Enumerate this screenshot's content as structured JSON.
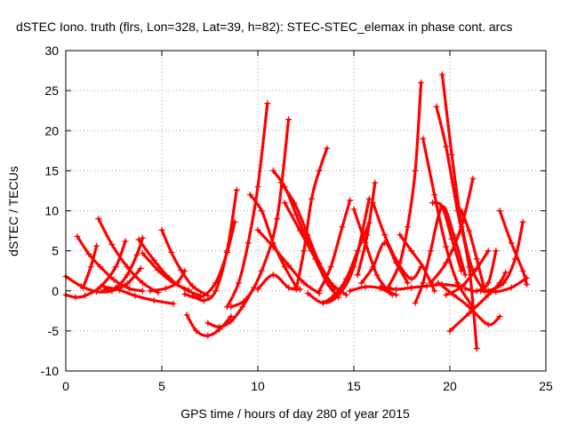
{
  "chart_data": {
    "type": "scatter",
    "title": "dSTEC Iono. truth (flrs, Lon=328, Lat=39, h=82): STEC-STEC_elemax in phase cont. arcs",
    "xlabel": "GPS time / hours of day 280 of year 2015",
    "ylabel": "dSTEC  / TECUs",
    "xlim": [
      0,
      25
    ],
    "ylim": [
      -10,
      30
    ],
    "x_ticks": [
      0,
      5,
      10,
      15,
      20,
      25
    ],
    "y_ticks": [
      -10,
      -5,
      0,
      5,
      10,
      15,
      20,
      25,
      30
    ],
    "x_tick_labels": [
      "0",
      "5",
      "10",
      "15",
      "20",
      "25"
    ],
    "y_tick_labels": [
      "-10",
      "-5",
      "0",
      "5",
      "10",
      "15",
      "20",
      "25",
      "30"
    ],
    "grid": true,
    "marker": "+",
    "color": "#ff0000",
    "series": [
      {
        "x": [
          0.0,
          0.8,
          1.6,
          2.4,
          3.2,
          3.9
        ],
        "y": [
          1.8,
          0.6,
          -0.1,
          0.0,
          0.9,
          2.8
        ]
      },
      {
        "x": [
          0.0,
          0.5,
          1.0,
          1.8,
          2.6,
          3.1
        ],
        "y": [
          -0.5,
          -0.8,
          -0.6,
          0.5,
          3.0,
          6.2
        ]
      },
      {
        "x": [
          0.6,
          1.2,
          1.8,
          2.5,
          3.3,
          4.0
        ],
        "y": [
          6.8,
          4.6,
          3.0,
          1.4,
          0.3,
          0.0
        ]
      },
      {
        "x": [
          0.9,
          1.3,
          1.6
        ],
        "y": [
          0.4,
          3.0,
          5.6
        ]
      },
      {
        "x": [
          1.7,
          2.4,
          3.2,
          4.0,
          4.8
        ],
        "y": [
          9.0,
          5.8,
          3.0,
          1.0,
          -0.2
        ]
      },
      {
        "x": [
          2.0,
          2.8,
          3.6,
          4.6,
          5.6
        ],
        "y": [
          0.5,
          0.1,
          -0.6,
          -1.2,
          -1.6
        ]
      },
      {
        "x": [
          2.0,
          2.6,
          3.2,
          3.7,
          4.0
        ],
        "y": [
          0.1,
          0.4,
          2.0,
          4.5,
          6.6
        ]
      },
      {
        "x": [
          3.8,
          4.6,
          5.4,
          6.2,
          7.0
        ],
        "y": [
          6.4,
          3.8,
          1.6,
          0.2,
          -0.6
        ]
      },
      {
        "x": [
          4.0,
          4.8,
          5.6,
          6.4
        ],
        "y": [
          4.7,
          2.6,
          1.0,
          0.1
        ]
      },
      {
        "x": [
          4.4,
          5.2,
          5.8,
          6.2
        ],
        "y": [
          0.0,
          0.3,
          1.0,
          2.5
        ]
      },
      {
        "x": [
          5.0,
          5.5,
          6.0,
          6.6,
          7.4
        ],
        "y": [
          7.6,
          4.8,
          2.6,
          0.6,
          -0.6
        ]
      },
      {
        "x": [
          6.2,
          7.0,
          7.8,
          8.4,
          8.8
        ],
        "y": [
          -0.4,
          -0.8,
          1.0,
          4.8,
          8.6
        ]
      },
      {
        "x": [
          6.6,
          7.2,
          7.8,
          8.4,
          8.9
        ],
        "y": [
          -0.6,
          -1.2,
          0.0,
          5.0,
          12.6
        ]
      },
      {
        "x": [
          6.3,
          6.8,
          7.4,
          8.0,
          8.6
        ],
        "y": [
          -3.0,
          -5.0,
          -5.6,
          -4.8,
          -3.2
        ]
      },
      {
        "x": [
          7.4,
          8.0,
          8.6,
          9.2,
          9.8
        ],
        "y": [
          -4.0,
          -4.5,
          -3.8,
          -2.0,
          0.4
        ]
      },
      {
        "x": [
          8.4,
          9.0,
          9.5,
          10.0,
          10.5
        ],
        "y": [
          -2.0,
          1.0,
          6.0,
          13.0,
          23.4
        ]
      },
      {
        "x": [
          8.6,
          9.4,
          10.2,
          11.0,
          11.6
        ],
        "y": [
          -2.0,
          -1.0,
          2.5,
          9.0,
          21.4
        ]
      },
      {
        "x": [
          9.6,
          10.2,
          10.8,
          11.4,
          12.0
        ],
        "y": [
          12.0,
          10.0,
          6.0,
          3.0,
          0.5
        ]
      },
      {
        "x": [
          10.0,
          10.8,
          11.6,
          12.4,
          13.2
        ],
        "y": [
          7.6,
          5.5,
          3.2,
          1.0,
          -0.3
        ]
      },
      {
        "x": [
          10.8,
          11.4,
          12.0,
          12.8,
          13.6,
          14.2
        ],
        "y": [
          15.0,
          13.0,
          9.5,
          5.0,
          1.0,
          -0.8
        ]
      },
      {
        "x": [
          11.2,
          11.9,
          12.6,
          13.2,
          14.0
        ],
        "y": [
          13.5,
          11.0,
          7.0,
          3.5,
          0.2
        ]
      },
      {
        "x": [
          11.4,
          12.2,
          13.0,
          13.8,
          14.6
        ],
        "y": [
          11.0,
          7.5,
          4.0,
          1.0,
          -0.5
        ]
      },
      {
        "x": [
          12.0,
          12.4,
          12.8,
          13.2,
          13.6
        ],
        "y": [
          0.2,
          5.0,
          11.5,
          15.0,
          17.8
        ]
      },
      {
        "x": [
          10.0,
          10.8,
          11.6,
          12.2
        ],
        "y": [
          0.2,
          2.0,
          0.4,
          0.2
        ]
      },
      {
        "x": [
          12.6,
          13.4,
          14.2,
          15.0,
          15.8
        ],
        "y": [
          -0.3,
          -1.5,
          -0.5,
          3.0,
          11.5
        ]
      },
      {
        "x": [
          13.2,
          13.8,
          14.4,
          14.8
        ],
        "y": [
          0.0,
          3.0,
          8.0,
          11.3
        ]
      },
      {
        "x": [
          13.4,
          14.0,
          14.6,
          15.2,
          15.8
        ],
        "y": [
          -1.5,
          -0.5,
          1.5,
          5.0,
          8.5
        ]
      },
      {
        "x": [
          15.0,
          15.6,
          16.2,
          16.8,
          17.2
        ],
        "y": [
          10.2,
          6.0,
          2.0,
          0.0,
          -0.5
        ]
      },
      {
        "x": [
          15.2,
          15.7,
          16.1
        ],
        "y": [
          2.0,
          7.0,
          13.5
        ]
      },
      {
        "x": [
          15.4,
          16.0,
          16.6,
          17.2,
          17.8
        ],
        "y": [
          1.0,
          3.0,
          6.0,
          3.5,
          1.0
        ]
      },
      {
        "x": [
          16.0,
          16.6,
          17.3,
          18.0,
          18.5
        ],
        "y": [
          11.0,
          7.0,
          3.5,
          1.5,
          3.0
        ]
      },
      {
        "x": [
          16.8,
          17.4,
          17.8,
          18.2,
          18.5
        ],
        "y": [
          0.5,
          3.5,
          8.0,
          15.0,
          26.0
        ]
      },
      {
        "x": [
          17.4,
          18.0,
          18.6,
          19.2
        ],
        "y": [
          7.0,
          5.0,
          3.0,
          0.0
        ]
      },
      {
        "x": [
          18.2,
          18.6,
          19.0,
          19.6,
          20.2,
          20.8
        ],
        "y": [
          -1.5,
          1.0,
          5.0,
          10.5,
          7.0,
          2.0
        ]
      },
      {
        "x": [
          18.6,
          19.2,
          19.8,
          20.4,
          21.2
        ],
        "y": [
          19.0,
          12.0,
          5.5,
          1.0,
          -2.0
        ]
      },
      {
        "x": [
          19.1,
          19.6,
          20.1,
          20.6
        ],
        "y": [
          11.0,
          10.5,
          6.5,
          2.5
        ]
      },
      {
        "x": [
          19.3,
          19.8,
          20.4,
          21.0,
          21.4
        ],
        "y": [
          23.0,
          18.0,
          10.0,
          3.0,
          -7.2
        ]
      },
      {
        "x": [
          19.6,
          20.1,
          20.6,
          21.2,
          21.8
        ],
        "y": [
          27.0,
          17.0,
          8.5,
          2.5,
          0.0
        ]
      },
      {
        "x": [
          20.6,
          21.0,
          21.4,
          21.8
        ],
        "y": [
          10.0,
          7.5,
          4.0,
          0.2
        ]
      },
      {
        "x": [
          19.0,
          19.8,
          20.6,
          21.2
        ],
        "y": [
          1.0,
          3.5,
          8.0,
          14.0
        ]
      },
      {
        "x": [
          19.4,
          20.2,
          21.0,
          22.0,
          22.6
        ],
        "y": [
          1.0,
          -0.5,
          -2.0,
          -4.2,
          -3.2
        ]
      },
      {
        "x": [
          20.0,
          21.0,
          22.0,
          22.6,
          22.9
        ],
        "y": [
          -5.0,
          -2.8,
          -0.5,
          1.0,
          2.3
        ]
      },
      {
        "x": [
          19.8,
          20.6,
          21.4,
          22.0
        ],
        "y": [
          -0.5,
          0.5,
          2.8,
          5.0
        ]
      },
      {
        "x": [
          20.8,
          21.4,
          22.0,
          22.4
        ],
        "y": [
          0.3,
          0.0,
          1.0,
          5.0
        ]
      },
      {
        "x": [
          22.6,
          23.2,
          23.8,
          24.0
        ],
        "y": [
          10.0,
          6.0,
          2.5,
          0.8
        ]
      },
      {
        "x": [
          22.0,
          22.8,
          23.4,
          23.8
        ],
        "y": [
          0.0,
          1.0,
          4.0,
          8.6
        ]
      },
      {
        "x": [
          21.6,
          22.4,
          23.2,
          24.0
        ],
        "y": [
          0.0,
          -0.1,
          0.4,
          1.6
        ]
      },
      {
        "x": [
          16.4,
          17.2,
          18.0,
          18.8,
          19.6,
          20.4
        ],
        "y": [
          0.5,
          0.2,
          0.4,
          0.6,
          0.8,
          0.6
        ]
      },
      {
        "x": [
          14.8,
          15.6,
          16.4,
          17.0
        ],
        "y": [
          0.0,
          0.5,
          0.3,
          -0.5
        ]
      }
    ]
  }
}
